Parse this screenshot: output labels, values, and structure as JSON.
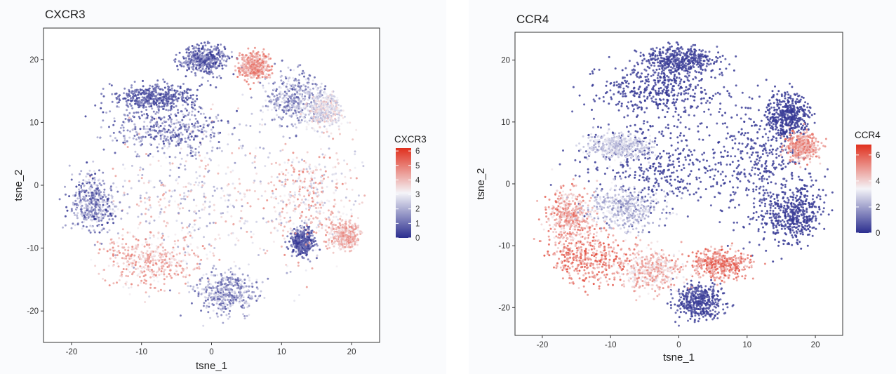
{
  "colors": {
    "low": "#2b2e8f",
    "mid": "#f4f4f8",
    "high": "#e0301e"
  },
  "chart_data": [
    {
      "type": "scatter",
      "title": "CXCR3",
      "xlabel": "tsne_1",
      "ylabel": "tsne_2",
      "xlim": [
        -24,
        24
      ],
      "ylim": [
        -25,
        25
      ],
      "xticks": [
        -20,
        -10,
        0,
        10,
        20
      ],
      "yticks": [
        -20,
        -10,
        0,
        10,
        20
      ],
      "grid": false,
      "legend": {
        "title": "CXCR3",
        "position": "right",
        "range": [
          0,
          6.2
        ],
        "ticks": [
          0,
          1,
          2,
          3,
          4,
          5,
          6
        ]
      },
      "regions": [
        {
          "center": [
            -3,
            -2
          ],
          "spread": [
            12,
            11
          ],
          "values": [
            1.5,
            4.5
          ]
        },
        {
          "center": [
            -6,
            9
          ],
          "spread": [
            8,
            4
          ],
          "values": [
            0,
            2.5
          ]
        },
        {
          "center": [
            -8,
            14
          ],
          "spread": [
            5,
            2
          ],
          "values": [
            0,
            1.5
          ]
        },
        {
          "center": [
            -1,
            20
          ],
          "spread": [
            3,
            2
          ],
          "values": [
            0,
            2
          ]
        },
        {
          "center": [
            6,
            19
          ],
          "spread": [
            2,
            2
          ],
          "values": [
            3.5,
            5.5
          ]
        },
        {
          "center": [
            12,
            14
          ],
          "spread": [
            4,
            4
          ],
          "values": [
            0.5,
            3
          ]
        },
        {
          "center": [
            16,
            12
          ],
          "spread": [
            2.5,
            2.5
          ],
          "values": [
            2,
            4
          ]
        },
        {
          "center": [
            -9,
            -12
          ],
          "spread": [
            6,
            4
          ],
          "values": [
            3,
            5
          ]
        },
        {
          "center": [
            2,
            -17
          ],
          "spread": [
            4,
            3
          ],
          "values": [
            0.5,
            3
          ]
        },
        {
          "center": [
            13,
            -9
          ],
          "spread": [
            1.5,
            2
          ],
          "values": [
            0,
            1.5
          ]
        },
        {
          "center": [
            -17,
            -3
          ],
          "spread": [
            3,
            4
          ],
          "values": [
            0,
            3
          ]
        },
        {
          "center": [
            14,
            -2
          ],
          "spread": [
            6,
            8
          ],
          "values": [
            2,
            5
          ]
        },
        {
          "center": [
            19,
            -8
          ],
          "spread": [
            2,
            2
          ],
          "values": [
            3,
            5
          ]
        }
      ]
    },
    {
      "type": "scatter",
      "title": "CCR4",
      "xlabel": "tsne_1",
      "ylabel": "tsne_2",
      "xlim": [
        -24,
        24
      ],
      "ylim": [
        -24.5,
        24.5
      ],
      "xticks": [
        -20,
        -10,
        0,
        10,
        20
      ],
      "yticks": [
        -20,
        -10,
        0,
        10,
        20
      ],
      "grid": false,
      "legend": {
        "title": "CCR4",
        "position": "right",
        "range": [
          0,
          6.8
        ],
        "ticks": [
          0,
          2,
          4,
          6
        ]
      },
      "regions": [
        {
          "center": [
            -3,
            3
          ],
          "spread": [
            10,
            7
          ],
          "values": [
            0,
            0.6
          ]
        },
        {
          "center": [
            12,
            3
          ],
          "spread": [
            7,
            10
          ],
          "values": [
            0,
            0.6
          ]
        },
        {
          "center": [
            -3,
            15
          ],
          "spread": [
            8,
            4
          ],
          "values": [
            0,
            0.6
          ]
        },
        {
          "center": [
            0,
            20
          ],
          "spread": [
            5,
            2
          ],
          "values": [
            0,
            0.8
          ]
        },
        {
          "center": [
            16,
            11
          ],
          "spread": [
            3,
            3
          ],
          "values": [
            0,
            0.5
          ]
        },
        {
          "center": [
            17,
            -5
          ],
          "spread": [
            4,
            4
          ],
          "values": [
            0,
            0.5
          ]
        },
        {
          "center": [
            3,
            -19
          ],
          "spread": [
            3,
            2.5
          ],
          "values": [
            0,
            0.8
          ]
        },
        {
          "center": [
            -13,
            -12
          ],
          "spread": [
            6,
            4
          ],
          "values": [
            4,
            6.5
          ]
        },
        {
          "center": [
            -16,
            -5
          ],
          "spread": [
            3,
            4
          ],
          "values": [
            3.5,
            6
          ]
        },
        {
          "center": [
            6,
            -13
          ],
          "spread": [
            4,
            2
          ],
          "values": [
            4,
            6.5
          ]
        },
        {
          "center": [
            -8,
            -4
          ],
          "spread": [
            5,
            3
          ],
          "values": [
            1.5,
            3.5
          ]
        },
        {
          "center": [
            -9,
            6
          ],
          "spread": [
            4,
            2
          ],
          "values": [
            2,
            3.5
          ]
        },
        {
          "center": [
            18,
            6
          ],
          "spread": [
            2,
            2
          ],
          "values": [
            4,
            6
          ]
        },
        {
          "center": [
            -4,
            -14
          ],
          "spread": [
            4,
            3
          ],
          "values": [
            3,
            5.5
          ]
        }
      ]
    }
  ]
}
